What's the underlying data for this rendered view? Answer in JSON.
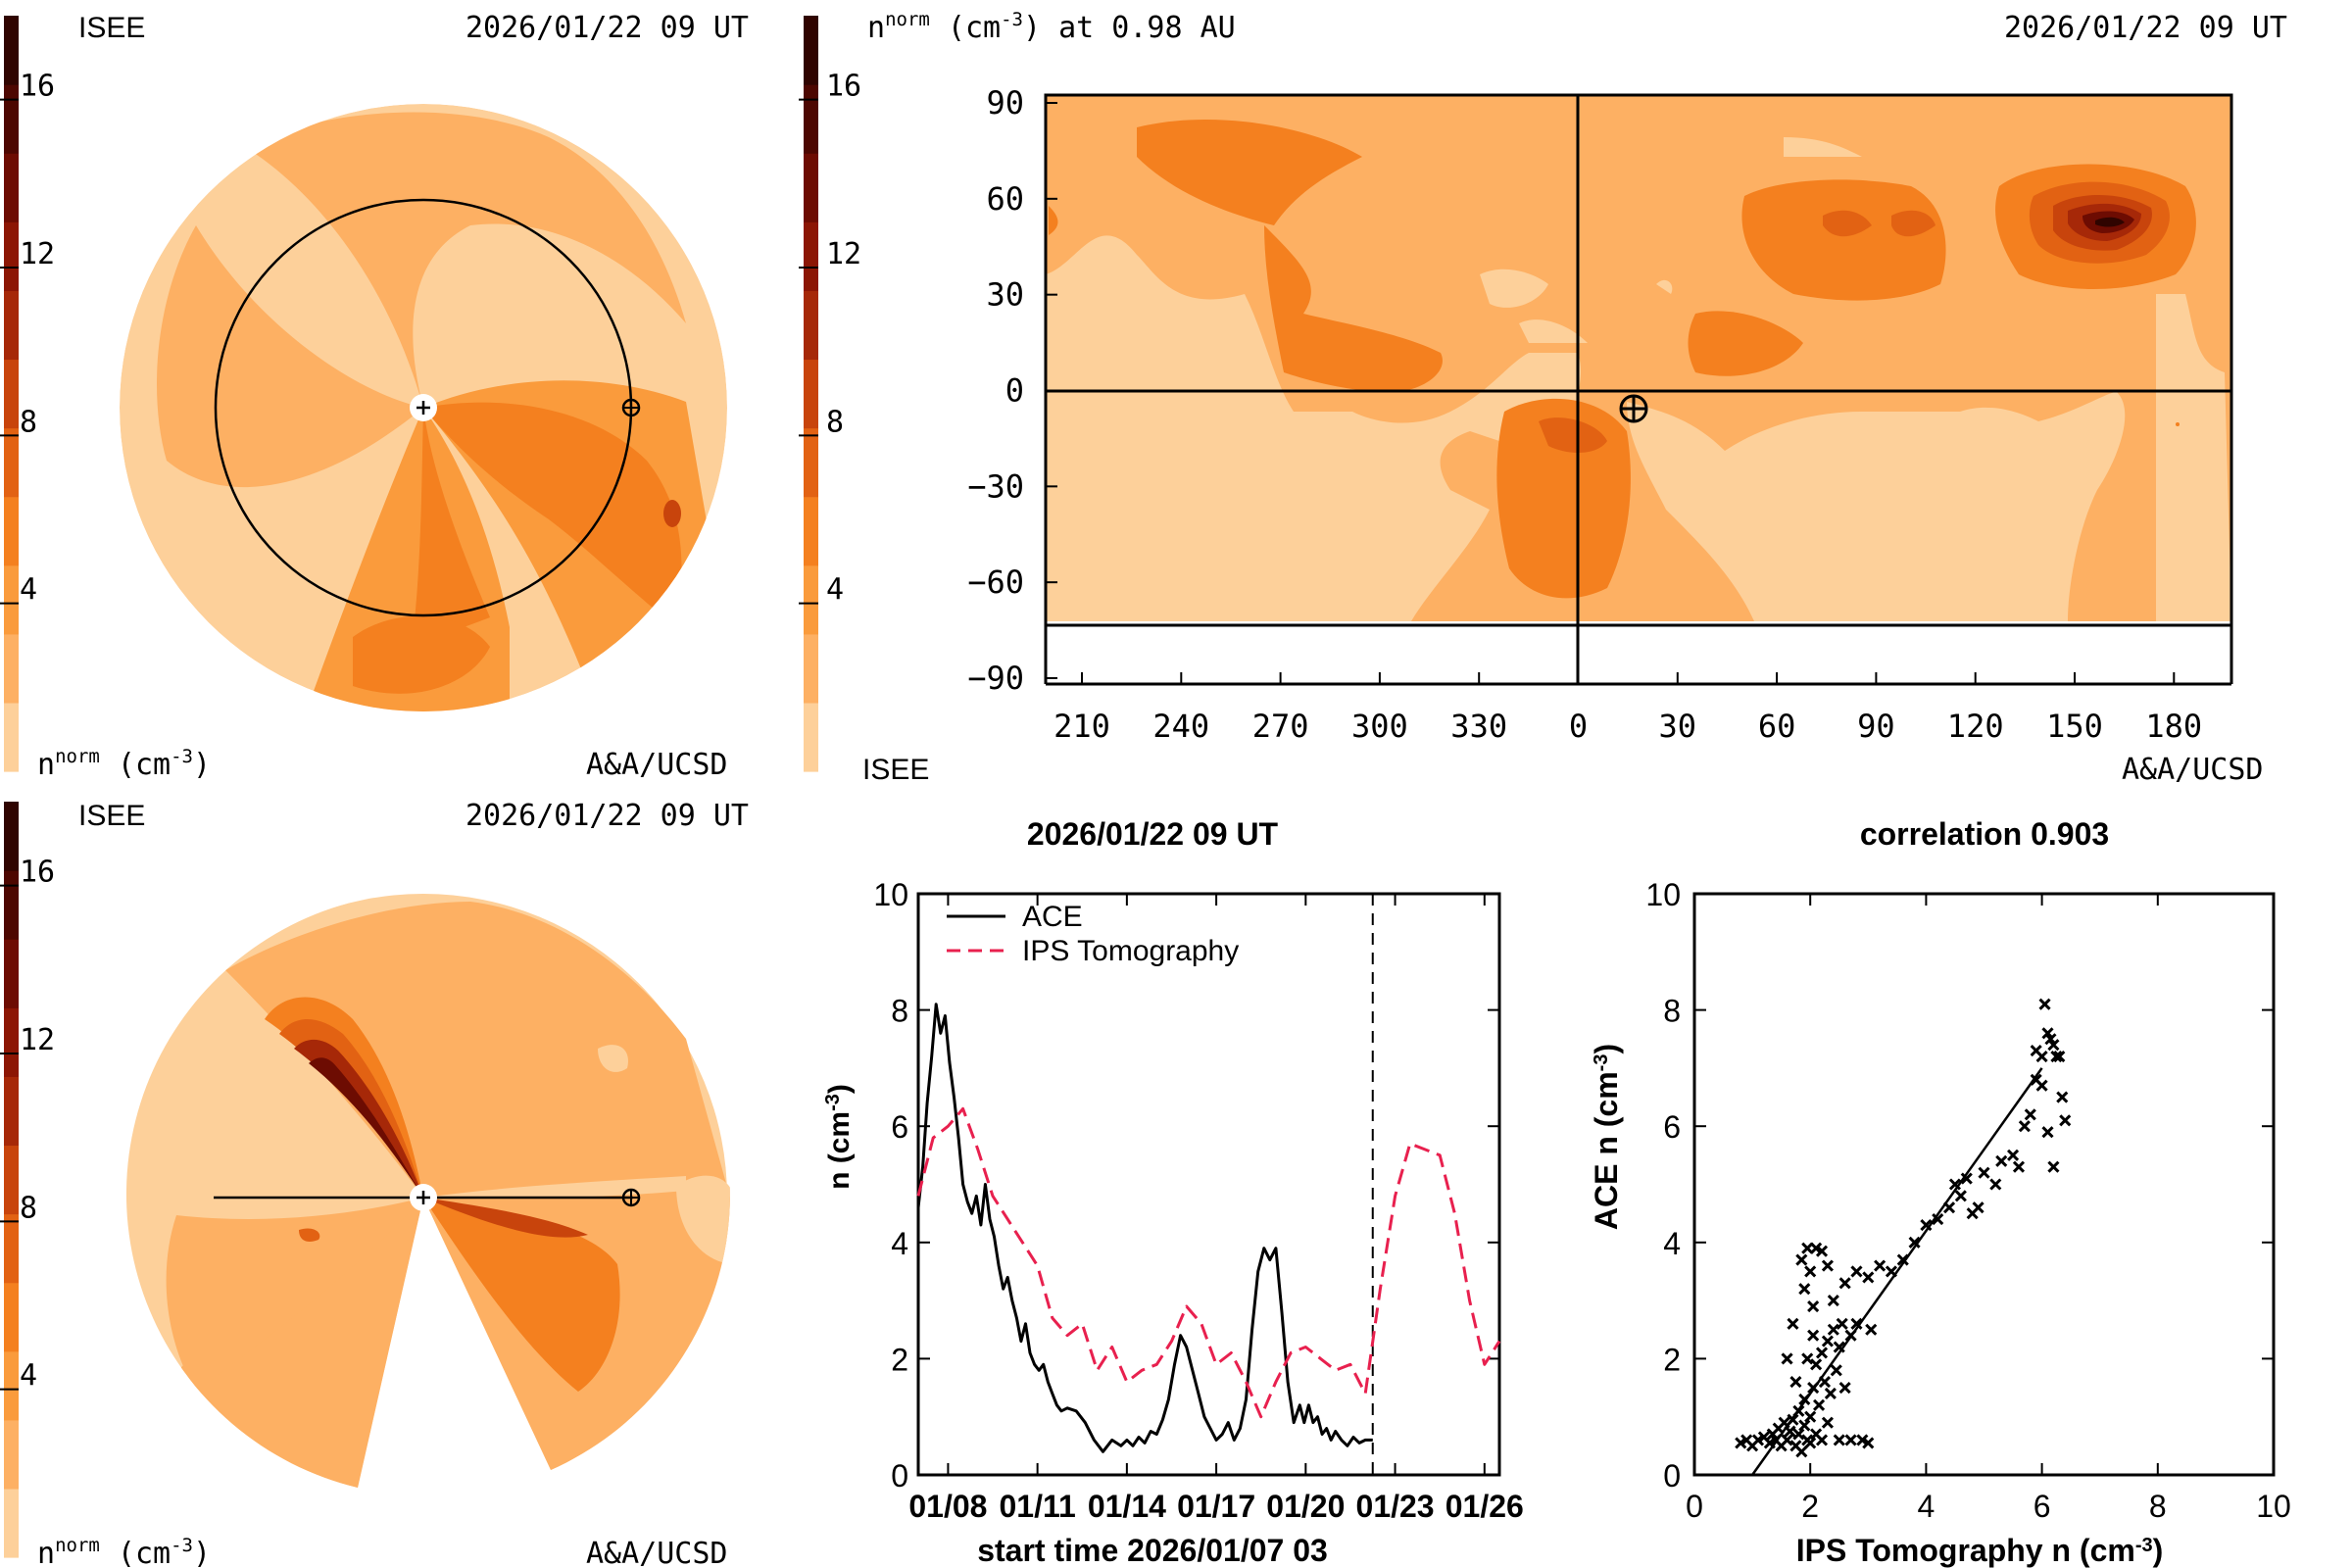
{
  "colors": {
    "levels": [
      "#fdd09a",
      "#fdb063",
      "#fa9b3c",
      "#f4801f",
      "#e26213",
      "#c8440c",
      "#a62808",
      "#8c1604",
      "#6d0c02",
      "#4d0701",
      "#2f0400"
    ],
    "axis": "#000000",
    "tomography": "#e8204e",
    "ace": "#000000"
  },
  "panels": {
    "tl": {
      "source": "ISEE",
      "date": "2026/01/22 09 UT",
      "unit": "(cm",
      "sup_norm": "norm",
      "sup_exp": "-3",
      "var": "n",
      "credit": "A&A/UCSD"
    },
    "tr": {
      "var": "n",
      "sup_norm": "norm",
      "unit": "(cm",
      "sup_exp": "-3",
      "title_rest": ") at 0.98 AU",
      "date": "2026/01/22 09 UT",
      "source": "ISEE",
      "credit": "A&A/UCSD"
    },
    "bl": {
      "source": "ISEE",
      "date": "2026/01/22 09 UT",
      "unit": "(cm",
      "sup_norm": "norm",
      "sup_exp": "-3",
      "var": "n",
      "credit": "A&A/UCSD"
    }
  },
  "chart_data": [
    {
      "type": "heatmap",
      "id": "colorbar",
      "ticks": [
        "4",
        "8",
        "12",
        "16"
      ],
      "tick_values": [
        4,
        8,
        12,
        16
      ],
      "range": [
        0,
        18
      ]
    },
    {
      "type": "heatmap",
      "id": "latlon-map",
      "x_ticks": [
        "210",
        "240",
        "270",
        "300",
        "330",
        "0",
        "30",
        "60",
        "90",
        "120",
        "150",
        "180"
      ],
      "y_ticks": [
        "90",
        "60",
        "30",
        "0",
        "−30",
        "−60",
        "−90"
      ],
      "ylim": [
        -90,
        90
      ],
      "earth_longitude": 17,
      "earth_latitude": -5
    },
    {
      "type": "line",
      "id": "timeseries",
      "title": "2026/01/22 09 UT",
      "xlabel": "start time 2026/01/07 03",
      "ylabel": "n (cm",
      "ylabel_sup": "-3",
      "ylabel_end": ")",
      "x_ticks": [
        "01/08",
        "01/11",
        "01/14",
        "01/17",
        "01/20",
        "01/23",
        "01/26"
      ],
      "x_tick_days": [
        1,
        4,
        7,
        10,
        13,
        16,
        19
      ],
      "xlim": [
        0,
        19.5
      ],
      "y_ticks": [
        "0",
        "2",
        "4",
        "6",
        "8",
        "10"
      ],
      "ylim": [
        0,
        10
      ],
      "current_time_day": 15.25,
      "series": [
        {
          "name": "ACE",
          "style": "solid",
          "x": [
            0,
            0.15,
            0.3,
            0.45,
            0.6,
            0.75,
            0.9,
            1.05,
            1.2,
            1.35,
            1.5,
            1.65,
            1.8,
            1.95,
            2.1,
            2.25,
            2.4,
            2.55,
            2.7,
            2.85,
            3.0,
            3.15,
            3.3,
            3.45,
            3.6,
            3.75,
            3.9,
            4.05,
            4.2,
            4.35,
            4.5,
            4.65,
            4.8,
            5.0,
            5.3,
            5.6,
            5.9,
            6.2,
            6.5,
            6.8,
            7.0,
            7.2,
            7.4,
            7.6,
            7.8,
            8.0,
            8.2,
            8.4,
            8.6,
            8.8,
            9.0,
            9.2,
            9.4,
            9.6,
            9.8,
            10.0,
            10.2,
            10.4,
            10.6,
            10.8,
            11.0,
            11.2,
            11.4,
            11.6,
            11.8,
            12.0,
            12.2,
            12.4,
            12.6,
            12.8,
            12.95,
            13.1,
            13.25,
            13.4,
            13.55,
            13.7,
            13.85,
            14.0,
            14.2,
            14.4,
            14.6,
            14.8,
            15.0,
            15.25
          ],
          "values": [
            4.6,
            5.3,
            6.4,
            7.2,
            8.1,
            7.6,
            7.9,
            7.1,
            6.5,
            5.8,
            5.0,
            4.7,
            4.5,
            4.8,
            4.3,
            5.0,
            4.4,
            4.1,
            3.6,
            3.2,
            3.4,
            3.0,
            2.7,
            2.3,
            2.6,
            2.1,
            1.9,
            1.8,
            1.9,
            1.6,
            1.4,
            1.2,
            1.1,
            1.15,
            1.1,
            0.9,
            0.6,
            0.4,
            0.6,
            0.5,
            0.6,
            0.5,
            0.65,
            0.55,
            0.75,
            0.7,
            0.95,
            1.3,
            1.9,
            2.4,
            2.2,
            1.8,
            1.4,
            1.0,
            0.8,
            0.6,
            0.7,
            0.9,
            0.6,
            0.8,
            1.3,
            2.5,
            3.5,
            3.9,
            3.7,
            3.9,
            2.8,
            1.6,
            0.9,
            1.2,
            0.9,
            1.2,
            0.9,
            1.0,
            0.7,
            0.8,
            0.6,
            0.75,
            0.6,
            0.5,
            0.65,
            0.55,
            0.6,
            0.6
          ]
        },
        {
          "name": "IPS Tomography",
          "style": "dashed",
          "x": [
            0,
            0.5,
            1.0,
            1.5,
            2.0,
            2.5,
            3.0,
            3.5,
            4.0,
            4.5,
            5.0,
            5.5,
            6.0,
            6.5,
            7.0,
            7.5,
            8.0,
            8.5,
            9.0,
            9.5,
            10.0,
            10.5,
            11.0,
            11.5,
            12.0,
            12.5,
            13.0,
            13.5,
            14.0,
            14.5,
            15.0,
            15.5,
            16.0,
            16.5,
            17.0,
            17.5,
            18.0,
            18.5,
            19.0,
            19.5
          ],
          "values": [
            4.8,
            5.8,
            6.0,
            6.3,
            5.6,
            4.8,
            4.4,
            4.0,
            3.6,
            2.7,
            2.4,
            2.6,
            1.8,
            2.2,
            1.6,
            1.8,
            1.9,
            2.3,
            2.9,
            2.6,
            1.9,
            2.1,
            1.6,
            1.0,
            1.6,
            2.1,
            2.2,
            2.0,
            1.8,
            1.9,
            1.4,
            3.2,
            4.8,
            5.7,
            5.6,
            5.5,
            4.5,
            3.0,
            1.9,
            2.3
          ]
        }
      ]
    },
    {
      "type": "scatter",
      "id": "correlation",
      "title": "correlation 0.903",
      "xlabel": "IPS Tomography n (cm",
      "ylabel": "ACE n (cm",
      "label_sup": "-3",
      "label_end": ")",
      "x_ticks": [
        "0",
        "2",
        "4",
        "6",
        "8",
        "10"
      ],
      "y_ticks": [
        "0",
        "2",
        "4",
        "6",
        "8",
        "10"
      ],
      "xlim": [
        0,
        10
      ],
      "ylim": [
        0,
        10
      ],
      "fit": {
        "x": [
          1.0,
          6.0
        ],
        "y": [
          0.0,
          7.0
        ]
      },
      "points": [
        [
          0.8,
          0.55
        ],
        [
          0.9,
          0.6
        ],
        [
          1.0,
          0.5
        ],
        [
          1.1,
          0.6
        ],
        [
          1.2,
          0.65
        ],
        [
          1.3,
          0.55
        ],
        [
          1.35,
          0.7
        ],
        [
          1.4,
          0.6
        ],
        [
          1.45,
          0.8
        ],
        [
          1.5,
          0.5
        ],
        [
          1.55,
          0.9
        ],
        [
          1.6,
          0.6
        ],
        [
          1.65,
          0.75
        ],
        [
          1.7,
          0.95
        ],
        [
          1.75,
          0.5
        ],
        [
          1.8,
          0.7
        ],
        [
          1.8,
          1.1
        ],
        [
          1.85,
          0.4
        ],
        [
          1.9,
          0.85
        ],
        [
          1.9,
          1.3
        ],
        [
          1.95,
          0.6
        ],
        [
          2.0,
          1.0
        ],
        [
          2.0,
          0.55
        ],
        [
          2.05,
          1.5
        ],
        [
          2.1,
          0.7
        ],
        [
          2.1,
          1.9
        ],
        [
          2.15,
          1.2
        ],
        [
          2.2,
          2.1
        ],
        [
          2.2,
          0.6
        ],
        [
          2.25,
          1.6
        ],
        [
          2.3,
          2.3
        ],
        [
          2.3,
          0.9
        ],
        [
          2.35,
          1.4
        ],
        [
          2.4,
          2.5
        ],
        [
          2.45,
          1.8
        ],
        [
          2.5,
          2.2
        ],
        [
          2.5,
          0.6
        ],
        [
          2.55,
          2.6
        ],
        [
          2.6,
          1.5
        ],
        [
          2.7,
          2.4
        ],
        [
          2.7,
          0.6
        ],
        [
          2.8,
          2.6
        ],
        [
          2.9,
          0.6
        ],
        [
          3.0,
          0.55
        ],
        [
          3.05,
          2.5
        ],
        [
          1.6,
          2.0
        ],
        [
          1.7,
          2.6
        ],
        [
          1.75,
          1.6
        ],
        [
          1.85,
          3.7
        ],
        [
          1.9,
          3.2
        ],
        [
          1.95,
          3.9
        ],
        [
          2.0,
          3.5
        ],
        [
          2.05,
          2.9
        ],
        [
          2.1,
          3.9
        ],
        [
          2.2,
          3.85
        ],
        [
          2.3,
          3.6
        ],
        [
          2.05,
          2.4
        ],
        [
          1.95,
          2.0
        ],
        [
          2.4,
          3.0
        ],
        [
          2.6,
          3.3
        ],
        [
          2.8,
          3.5
        ],
        [
          3.0,
          3.4
        ],
        [
          3.2,
          3.6
        ],
        [
          3.4,
          3.5
        ],
        [
          3.6,
          3.7
        ],
        [
          3.8,
          4.0
        ],
        [
          4.0,
          4.3
        ],
        [
          4.2,
          4.4
        ],
        [
          4.4,
          4.6
        ],
        [
          4.5,
          5.0
        ],
        [
          4.6,
          4.8
        ],
        [
          4.7,
          5.1
        ],
        [
          4.8,
          4.5
        ],
        [
          4.9,
          4.6
        ],
        [
          5.0,
          5.2
        ],
        [
          5.2,
          5.0
        ],
        [
          5.3,
          5.4
        ],
        [
          5.5,
          5.5
        ],
        [
          5.6,
          5.3
        ],
        [
          5.7,
          6.0
        ],
        [
          5.8,
          6.2
        ],
        [
          5.9,
          7.3
        ],
        [
          6.0,
          7.2
        ],
        [
          6.05,
          8.1
        ],
        [
          6.1,
          7.6
        ],
        [
          6.15,
          7.5
        ],
        [
          6.2,
          7.4
        ],
        [
          6.25,
          7.2
        ],
        [
          6.3,
          7.2
        ],
        [
          6.35,
          6.5
        ],
        [
          6.4,
          6.1
        ],
        [
          6.0,
          6.7
        ],
        [
          6.1,
          5.9
        ],
        [
          6.2,
          5.3
        ],
        [
          5.9,
          6.8
        ]
      ]
    }
  ]
}
